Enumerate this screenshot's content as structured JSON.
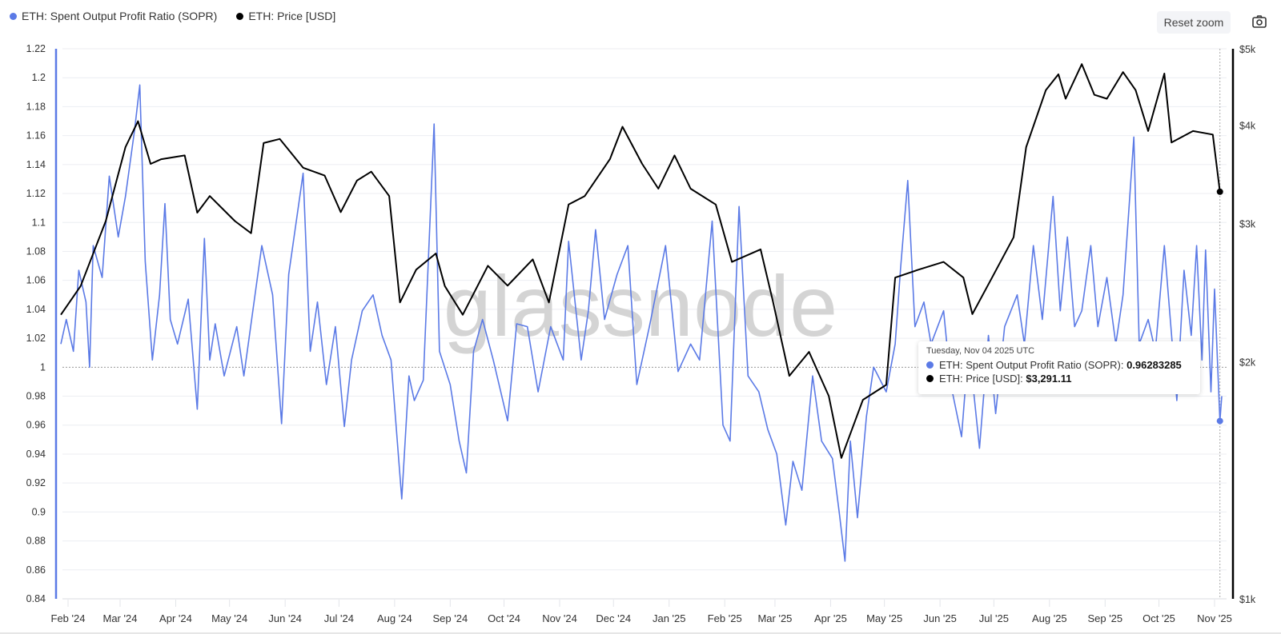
{
  "legend": [
    {
      "label": "ETH: Spent Output Profit Ratio (SOPR)",
      "color": "#5b7ae6"
    },
    {
      "label": "ETH: Price [USD]",
      "color": "#000000"
    }
  ],
  "toolbar": {
    "reset_zoom_label": "Reset zoom",
    "camera_icon": "camera-icon"
  },
  "watermark": "glassnode",
  "tooltip": {
    "date": "Tuesday, Nov 04 2025 UTC",
    "rows": [
      {
        "label": "ETH: Spent Output Profit Ratio (SOPR)",
        "value": "0.96283285",
        "color": "#5b7ae6"
      },
      {
        "label": "ETH: Price [USD]",
        "value": "$3,291.11",
        "color": "#000000"
      }
    ]
  },
  "chart_data": {
    "type": "line",
    "x_type": "date",
    "xlim": [
      "2024-01-28",
      "2025-11-05"
    ],
    "x_ticks": [
      "Feb '24",
      "Mar '24",
      "Apr '24",
      "May '24",
      "Jun '24",
      "Jul '24",
      "Aug '24",
      "Sep '24",
      "Oct '24",
      "Nov '24",
      "Dec '24",
      "Jan '25",
      "Feb '25",
      "Mar '25",
      "Apr '25",
      "May '25",
      "Jun '25",
      "Jul '25",
      "Aug '25",
      "Sep '25",
      "Oct '25",
      "Nov '25"
    ],
    "x_tick_dates": [
      "2024-02-01",
      "2024-03-01",
      "2024-04-01",
      "2024-05-01",
      "2024-06-01",
      "2024-07-01",
      "2024-08-01",
      "2024-09-01",
      "2024-10-01",
      "2024-11-01",
      "2024-12-01",
      "2025-01-01",
      "2025-02-01",
      "2025-03-01",
      "2025-04-01",
      "2025-05-01",
      "2025-06-01",
      "2025-07-01",
      "2025-08-01",
      "2025-09-01",
      "2025-10-01",
      "2025-11-01"
    ],
    "y_left": {
      "ylim": [
        0.84,
        1.22
      ],
      "ticks": [
        "1.22",
        "1.2",
        "1.18",
        "1.16",
        "1.14",
        "1.12",
        "1.1",
        "1.08",
        "1.06",
        "1.04",
        "1.02",
        "1",
        "0.98",
        "0.96",
        "0.94",
        "0.92",
        "0.9",
        "0.88",
        "0.86",
        "0.84"
      ],
      "reference_line": 1.0
    },
    "y_right": {
      "scale": "log",
      "ylim": [
        1000,
        5000
      ],
      "ticks": [
        {
          "label": "$5k",
          "value": 5000
        },
        {
          "label": "$4k",
          "value": 4000
        },
        {
          "label": "$3k",
          "value": 3000
        },
        {
          "label": "$2k",
          "value": 2000
        },
        {
          "label": "$1k",
          "value": 1000
        }
      ]
    },
    "grid": true,
    "legend_position": "top-left",
    "hover_date": "2025-11-04",
    "series": [
      {
        "name": "ETH: Spent Output Profit Ratio (SOPR)",
        "axis": "left",
        "color": "#5b7ae6",
        "points": [
          [
            "2024-01-28",
            1.016
          ],
          [
            "2024-01-31",
            1.033
          ],
          [
            "2024-02-04",
            1.011
          ],
          [
            "2024-02-07",
            1.067
          ],
          [
            "2024-02-11",
            1.045
          ],
          [
            "2024-02-13",
            1.0
          ],
          [
            "2024-02-15",
            1.084
          ],
          [
            "2024-02-20",
            1.062
          ],
          [
            "2024-02-24",
            1.132
          ],
          [
            "2024-02-29",
            1.09
          ],
          [
            "2024-03-04",
            1.118
          ],
          [
            "2024-03-09",
            1.163
          ],
          [
            "2024-03-12",
            1.195
          ],
          [
            "2024-03-15",
            1.073
          ],
          [
            "2024-03-19",
            1.005
          ],
          [
            "2024-03-23",
            1.05
          ],
          [
            "2024-03-26",
            1.113
          ],
          [
            "2024-03-29",
            1.033
          ],
          [
            "2024-04-02",
            1.016
          ],
          [
            "2024-04-08",
            1.047
          ],
          [
            "2024-04-13",
            0.971
          ],
          [
            "2024-04-17",
            1.089
          ],
          [
            "2024-04-20",
            1.005
          ],
          [
            "2024-04-23",
            1.03
          ],
          [
            "2024-04-28",
            0.994
          ],
          [
            "2024-05-05",
            1.028
          ],
          [
            "2024-05-09",
            0.994
          ],
          [
            "2024-05-19",
            1.084
          ],
          [
            "2024-05-25",
            1.05
          ],
          [
            "2024-05-30",
            0.961
          ],
          [
            "2024-06-03",
            1.064
          ],
          [
            "2024-06-11",
            1.134
          ],
          [
            "2024-06-15",
            1.011
          ],
          [
            "2024-06-19",
            1.045
          ],
          [
            "2024-06-24",
            0.988
          ],
          [
            "2024-06-29",
            1.028
          ],
          [
            "2024-07-04",
            0.959
          ],
          [
            "2024-07-08",
            1.005
          ],
          [
            "2024-07-14",
            1.039
          ],
          [
            "2024-07-20",
            1.05
          ],
          [
            "2024-07-25",
            1.022
          ],
          [
            "2024-07-30",
            1.005
          ],
          [
            "2024-08-05",
            0.909
          ],
          [
            "2024-08-09",
            0.994
          ],
          [
            "2024-08-12",
            0.977
          ],
          [
            "2024-08-17",
            0.991
          ],
          [
            "2024-08-23",
            1.168
          ],
          [
            "2024-08-26",
            1.011
          ],
          [
            "2024-09-01",
            0.988
          ],
          [
            "2024-09-06",
            0.949
          ],
          [
            "2024-09-10",
            0.927
          ],
          [
            "2024-09-14",
            1.011
          ],
          [
            "2024-09-19",
            1.033
          ],
          [
            "2024-09-25",
            1.005
          ],
          [
            "2024-10-03",
            0.963
          ],
          [
            "2024-10-08",
            1.03
          ],
          [
            "2024-10-14",
            1.028
          ],
          [
            "2024-10-20",
            0.983
          ],
          [
            "2024-10-27",
            1.028
          ],
          [
            "2024-11-03",
            1.005
          ],
          [
            "2024-11-06",
            1.087
          ],
          [
            "2024-11-13",
            1.005
          ],
          [
            "2024-11-17",
            1.039
          ],
          [
            "2024-11-21",
            1.095
          ],
          [
            "2024-11-26",
            1.033
          ],
          [
            "2024-12-03",
            1.064
          ],
          [
            "2024-12-09",
            1.084
          ],
          [
            "2024-12-14",
            0.988
          ],
          [
            "2024-12-21",
            1.028
          ],
          [
            "2024-12-30",
            1.084
          ],
          [
            "2025-01-06",
            0.997
          ],
          [
            "2025-01-13",
            1.016
          ],
          [
            "2025-01-18",
            1.005
          ],
          [
            "2025-01-25",
            1.101
          ],
          [
            "2025-01-31",
            0.96
          ],
          [
            "2025-02-04",
            0.949
          ],
          [
            "2025-02-09",
            1.111
          ],
          [
            "2025-02-14",
            0.994
          ],
          [
            "2025-02-20",
            0.983
          ],
          [
            "2025-02-25",
            0.957
          ],
          [
            "2025-03-02",
            0.94
          ],
          [
            "2025-03-07",
            0.891
          ],
          [
            "2025-03-11",
            0.935
          ],
          [
            "2025-03-16",
            0.915
          ],
          [
            "2025-03-22",
            0.994
          ],
          [
            "2025-03-27",
            0.949
          ],
          [
            "2025-04-02",
            0.937
          ],
          [
            "2025-04-06",
            0.898
          ],
          [
            "2025-04-09",
            0.866
          ],
          [
            "2025-04-12",
            0.949
          ],
          [
            "2025-04-16",
            0.896
          ],
          [
            "2025-04-21",
            0.966
          ],
          [
            "2025-04-25",
            1.0
          ],
          [
            "2025-05-02",
            0.983
          ],
          [
            "2025-05-07",
            1.016
          ],
          [
            "2025-05-10",
            1.068
          ],
          [
            "2025-05-14",
            1.129
          ],
          [
            "2025-05-18",
            1.028
          ],
          [
            "2025-05-23",
            1.045
          ],
          [
            "2025-05-27",
            1.016
          ],
          [
            "2025-06-03",
            1.039
          ],
          [
            "2025-06-07",
            0.988
          ],
          [
            "2025-06-13",
            0.952
          ],
          [
            "2025-06-17",
            1.016
          ],
          [
            "2025-06-23",
            0.944
          ],
          [
            "2025-06-28",
            1.022
          ],
          [
            "2025-07-02",
            0.968
          ],
          [
            "2025-07-07",
            1.028
          ],
          [
            "2025-07-14",
            1.05
          ],
          [
            "2025-07-18",
            1.016
          ],
          [
            "2025-07-23",
            1.084
          ],
          [
            "2025-07-28",
            1.033
          ],
          [
            "2025-08-03",
            1.118
          ],
          [
            "2025-08-07",
            1.039
          ],
          [
            "2025-08-11",
            1.09
          ],
          [
            "2025-08-15",
            1.028
          ],
          [
            "2025-08-19",
            1.039
          ],
          [
            "2025-08-24",
            1.084
          ],
          [
            "2025-08-28",
            1.028
          ],
          [
            "2025-09-02",
            1.062
          ],
          [
            "2025-09-07",
            1.016
          ],
          [
            "2025-09-11",
            1.05
          ],
          [
            "2025-09-17",
            1.159
          ],
          [
            "2025-09-20",
            1.016
          ],
          [
            "2025-09-25",
            1.033
          ],
          [
            "2025-09-29",
            1.011
          ],
          [
            "2025-10-04",
            1.084
          ],
          [
            "2025-10-11",
            0.977
          ],
          [
            "2025-10-15",
            1.067
          ],
          [
            "2025-10-19",
            1.022
          ],
          [
            "2025-10-22",
            1.084
          ],
          [
            "2025-10-25",
            1.005
          ],
          [
            "2025-10-27",
            1.081
          ],
          [
            "2025-10-30",
            0.983
          ],
          [
            "2025-11-01",
            1.054
          ],
          [
            "2025-11-04",
            0.96283285
          ],
          [
            "2025-11-05",
            0.98
          ]
        ]
      },
      {
        "name": "ETH: Price [USD]",
        "axis": "right",
        "color": "#000000",
        "points": [
          [
            "2024-01-28",
            2296
          ],
          [
            "2024-02-08",
            2497
          ],
          [
            "2024-02-22",
            3020
          ],
          [
            "2024-03-04",
            3750
          ],
          [
            "2024-03-11",
            4045
          ],
          [
            "2024-03-18",
            3570
          ],
          [
            "2024-03-24",
            3620
          ],
          [
            "2024-04-06",
            3660
          ],
          [
            "2024-04-13",
            3095
          ],
          [
            "2024-04-20",
            3250
          ],
          [
            "2024-05-04",
            3020
          ],
          [
            "2024-05-13",
            2915
          ],
          [
            "2024-05-20",
            3795
          ],
          [
            "2024-05-29",
            3840
          ],
          [
            "2024-06-11",
            3530
          ],
          [
            "2024-06-23",
            3450
          ],
          [
            "2024-07-02",
            3100
          ],
          [
            "2024-07-11",
            3400
          ],
          [
            "2024-07-19",
            3490
          ],
          [
            "2024-07-29",
            3250
          ],
          [
            "2024-08-04",
            2380
          ],
          [
            "2024-08-13",
            2620
          ],
          [
            "2024-08-24",
            2747
          ],
          [
            "2024-08-29",
            2497
          ],
          [
            "2024-09-08",
            2296
          ],
          [
            "2024-09-22",
            2650
          ],
          [
            "2024-10-03",
            2500
          ],
          [
            "2024-10-17",
            2700
          ],
          [
            "2024-10-26",
            2380
          ],
          [
            "2024-11-06",
            3170
          ],
          [
            "2024-11-15",
            3250
          ],
          [
            "2024-11-29",
            3620
          ],
          [
            "2024-12-06",
            3980
          ],
          [
            "2024-12-17",
            3570
          ],
          [
            "2024-12-26",
            3320
          ],
          [
            "2025-01-04",
            3660
          ],
          [
            "2025-01-13",
            3320
          ],
          [
            "2025-01-27",
            3170
          ],
          [
            "2025-02-05",
            2680
          ],
          [
            "2025-02-21",
            2780
          ],
          [
            "2025-02-28",
            2380
          ],
          [
            "2025-03-09",
            1920
          ],
          [
            "2025-03-20",
            2060
          ],
          [
            "2025-03-31",
            1810
          ],
          [
            "2025-04-07",
            1510
          ],
          [
            "2025-04-19",
            1790
          ],
          [
            "2025-05-02",
            1870
          ],
          [
            "2025-05-07",
            2560
          ],
          [
            "2025-05-20",
            2620
          ],
          [
            "2025-06-03",
            2680
          ],
          [
            "2025-06-14",
            2560
          ],
          [
            "2025-06-19",
            2300
          ],
          [
            "2025-06-30",
            2560
          ],
          [
            "2025-07-12",
            2880
          ],
          [
            "2025-07-19",
            3750
          ],
          [
            "2025-07-30",
            4430
          ],
          [
            "2025-08-06",
            4640
          ],
          [
            "2025-08-10",
            4320
          ],
          [
            "2025-08-19",
            4780
          ],
          [
            "2025-08-26",
            4370
          ],
          [
            "2025-09-02",
            4320
          ],
          [
            "2025-09-11",
            4670
          ],
          [
            "2025-09-18",
            4430
          ],
          [
            "2025-09-25",
            3930
          ],
          [
            "2025-10-04",
            4650
          ],
          [
            "2025-10-08",
            3800
          ],
          [
            "2025-10-20",
            3930
          ],
          [
            "2025-10-31",
            3890
          ],
          [
            "2025-11-04",
            3291.11
          ]
        ]
      }
    ]
  }
}
